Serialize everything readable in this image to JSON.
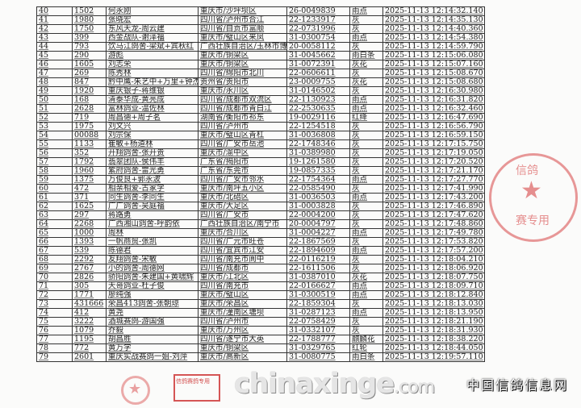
{
  "table": {
    "rows": [
      [
        "40",
        "1502",
        "何永刚",
        "重庆市/沙坪坝区",
        "26-0049839",
        "雨点",
        "2025-11-13  12:14:32.140"
      ],
      [
        "41",
        "1980",
        "张晓宏",
        "四川省/泸州市合江",
        "22-1233917",
        "灰",
        "2025-11-13  12:14:35.130"
      ],
      [
        "42",
        "1750",
        "东风天龙-周云建",
        "四川省/自贡市富顺",
        "22-0731996",
        "灰",
        "2025-11-13  12:14:40.360"
      ],
      [
        "43",
        "399",
        "西金战队-谢泽福",
        "重庆市/璧山区来凤",
        "31-0300754",
        "雨点",
        "2025-11-13  12:14:54.380"
      ],
      [
        "44",
        "793",
        "饮马江鸽舍-梁斌+宾秋红",
        "广西壮族自治区/玉林市博",
        "20-0058112",
        "灰",
        "2025-11-13  12:14:59.790"
      ],
      [
        "45",
        "290",
        "游彪",
        "重庆市/铜梁区",
        "31-0045662",
        "雨白条",
        "2025-11-13  12:15:06.080"
      ],
      [
        "46",
        "1605",
        "刘志荣",
        "重庆市/铜梁区",
        "31-0072391",
        "灰花",
        "2025-11-13  12:15:07.160"
      ],
      [
        "47",
        "269",
        "陈秀林",
        "四川省/绵阳市北川",
        "22-0606611",
        "灰",
        "2025-11-13  12:15:08.670"
      ],
      [
        "48",
        "847",
        "黔中鹰-朱艺中+万里+钟杰",
        "贵州省/贵阳市",
        "23-0009755",
        "灰花",
        "2025-11-13  12:15:08.680"
      ],
      [
        "49",
        "1920",
        "重庆银子-蒋维银",
        "重庆市/永川区",
        "31-0146502",
        "灰",
        "2025-11-13  12:16:30.980"
      ],
      [
        "50",
        "168",
        "清泰华成-黄亮成",
        "四川省/成都市双流区",
        "22-1130923",
        "雨点",
        "2025-11-13  12:16:31.820"
      ],
      [
        "51",
        "2628",
        "富林鸽业-温佐林",
        "四川省/成都市青白江",
        "22-2530635",
        "雨点",
        "2025-11-13  12:16:32.460"
      ],
      [
        "52",
        "719",
        "周昌德+周子茗",
        "湖南省/衡阳市祁东",
        "19-0029116",
        "红绛",
        "2025-11-13  12:16:47.690"
      ],
      [
        "53",
        "1975",
        "刘文兴",
        "四川省/泸州市",
        "22-1254518",
        "灰",
        "2025-11-13  12:16:56.790"
      ],
      [
        "54",
        "00088",
        "刘宗保",
        "重庆市/璧山区青杠",
        "31-0036808",
        "灰",
        "2025-11-13  12:16:59.150"
      ],
      [
        "55",
        "1133",
        "崔敏+杨道林",
        "四川省/广安市岳池",
        "22-1748346",
        "灰",
        "2025-11-13  12:17:15.750"
      ],
      [
        "56",
        "352",
        "开翔鸽舍-张开贵",
        "重庆市/渝中区",
        "31-0389980",
        "灰",
        "2025-11-13  12:17:19.050"
      ],
      [
        "57",
        "1792",
        "翡翠团队-侯伟丰",
        "广东省/揭阳市",
        "19-1261580",
        "灰",
        "2025-11-13  12:17:20.520"
      ],
      [
        "58",
        "1960",
        "紫府鸽舍-雷光勇",
        "广东省/东莞市",
        "19-0857335",
        "灰",
        "2025-11-13  12:17:21.170"
      ],
      [
        "59",
        "1375",
        "万俊良+郭永波",
        "四川省/广安市邻水",
        "22-1754364",
        "雨点",
        "2025-11-13  12:17:27.770"
      ],
      [
        "60",
        "472",
        "相亲相爱-古家学",
        "重庆市/南坪五小区",
        "22-0585490",
        "灰",
        "2025-11-13  12:17:41.990"
      ],
      [
        "61",
        "371",
        "同生鸽舍-李同生",
        "重庆市/北碚区",
        "31-0036503",
        "雨点",
        "2025-11-13  12:17:43.200"
      ],
      [
        "62",
        "1625",
        "广广鸽舍-吴庭福",
        "重庆市/大足区",
        "31-0003828",
        "灰",
        "2025-11-13  12:17:46.890"
      ],
      [
        "63",
        "297",
        "蒋路勇",
        "四川省/广安市",
        "22-0004200",
        "灰",
        "2025-11-13  12:17:47.620"
      ],
      [
        "64",
        "2268",
        "广西湘山鸽舍-呼韵依",
        "广西壮族自治区/南宁市",
        "20-0004797",
        "灰",
        "2025-11-13  12:17:48.860"
      ],
      [
        "65",
        "1000",
        "周林",
        "重庆市/合川区",
        "31-0004227",
        "雨点",
        "2025-11-13  12:17:49.780"
      ],
      [
        "66",
        "1393",
        "一帆商贸-张凯",
        "四川省/广元市旺苍",
        "22-1867569",
        "灰",
        "2025-11-13  12:17:53.820"
      ],
      [
        "67",
        "539",
        "陈德君",
        "四川省/宜宾市江安",
        "22-1894609",
        "雨点",
        "2025-11-13  12:17:57.200"
      ],
      [
        "68",
        "2292",
        "友翔鸽舍-宋敏",
        "四川省/南充市阆中",
        "22-0116219",
        "灰",
        "2025-11-13  12:18:04.210"
      ],
      [
        "69",
        "2767",
        "小的鸽舍-周德网",
        "四川省/成都市",
        "22-1611506",
        "灰",
        "2025-11-13  12:18:06.920"
      ],
      [
        "70",
        "2826",
        "骄阳鸽舍-朱建国+黄啸辉",
        "重庆市/江北区",
        "31-0387010",
        "灰花",
        "2025-11-13  12:18:07.750"
      ],
      [
        "71",
        "305",
        "天哥鸽业-杜子俊",
        "四川省/南充市",
        "22-0166627",
        "雨点",
        "2025-11-13  12:18:09.710"
      ],
      [
        "72",
        "1771",
        "廖纯强",
        "重庆市/璧山区",
        "31-0300519",
        "雨点",
        "2025-11-13  12:18:12.840"
      ],
      [
        "73",
        "431666",
        "荣昌413鸽舍-张朝琼",
        "重庆市/荣昌区",
        "22-1859304",
        "灰",
        "2025-11-13  12:18:13.030"
      ],
      [
        "74",
        "412",
        "黄尧",
        "重庆市/潼南区塘坝",
        "31-0287123",
        "雨点",
        "2025-11-13  12:18:13.950"
      ],
      [
        "75",
        "3222",
        "酒城赛鸽-游国强",
        "四川省/泸州市",
        "22-0758429",
        "灰",
        "2025-11-13  12:18:21.190"
      ],
      [
        "76",
        "1079",
        "乔毅",
        "重庆市/万州区",
        "31-0332107",
        "灰",
        "2025-11-13  12:18:31.930"
      ],
      [
        "77",
        "1195",
        "胡昌胜",
        "四川省/遂宁市大英",
        "22-1788777",
        "麒麟花",
        "2025-11-13  12:18:38.220"
      ],
      [
        "78",
        "772",
        "黄万学",
        "重庆市/铜梁区",
        "31-0329765",
        "红轮",
        "2025-11-13  12:18:44.050"
      ],
      [
        "79",
        "2601",
        "重庆实战赛鸽一姐-刘萍",
        "重庆市/高新区",
        "31-0080775",
        "雨白条",
        "2025-11-13  12:19:57.110"
      ]
    ]
  },
  "stamps": {
    "seal_top": {
      "text_top": "信鸽",
      "text_bottom": "赛专用",
      "color": "#d74646"
    },
    "seal_square": {
      "text": "信鸽赛鸽专用",
      "color": "#c81e1e"
    }
  },
  "watermark": {
    "domain_main": "chinaxinge",
    "domain_suffix": ".com",
    "subtitle": "中国信鸽信息网"
  }
}
